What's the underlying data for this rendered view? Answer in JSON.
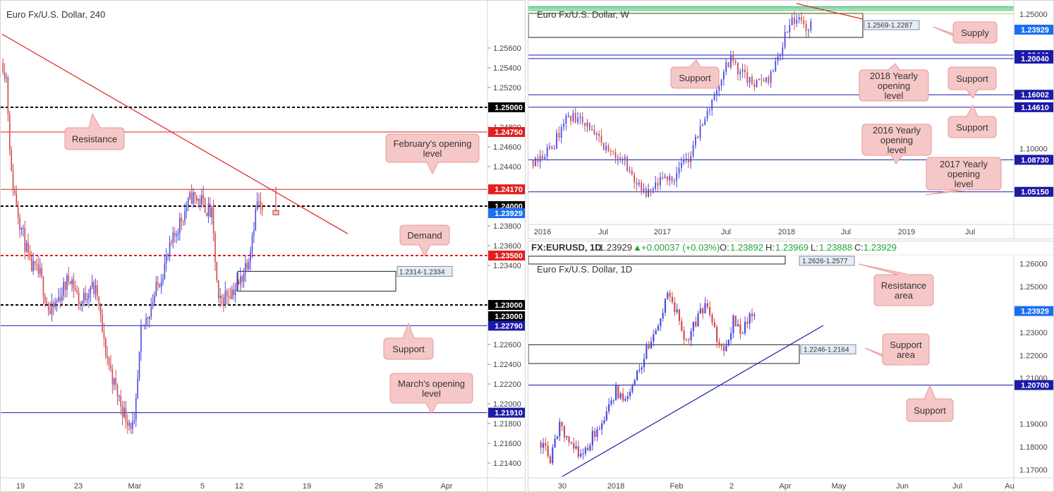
{
  "colors": {
    "bull": "#4a4ae0",
    "bear": "#d24a4a",
    "resistance": "#e02020",
    "support": "#1a1aa8",
    "level_black": "#000000",
    "callout_fill": "#f6c7c7",
    "callout_stroke": "#e79a9a",
    "zone_fill": "#e7edf4",
    "price_tag": "#1a6ef0",
    "green_line": "#3bbd6b"
  },
  "chart_data": [
    {
      "id": "h4",
      "type": "candlestick",
      "title": "Euro Fx/U.S. Dollar, 240",
      "ylim": [
        1.2125,
        1.2605
      ],
      "yticks": [
        "1.25600",
        "1.25400",
        "1.25200",
        "1.24800",
        "1.24600",
        "1.24400",
        "1.23800",
        "1.23600",
        "1.23400",
        "1.22600",
        "1.22400",
        "1.22200",
        "1.22000",
        "1.21800",
        "1.21600",
        "1.21400"
      ],
      "xticks": [
        "19",
        "23",
        "Mar",
        "5",
        "12",
        "19",
        "26",
        "Apr"
      ],
      "levels": [
        {
          "price": "1.25000",
          "style": "dotted-black",
          "tag": "1.25000"
        },
        {
          "price": "1.24750",
          "style": "red",
          "tag": "1.24750"
        },
        {
          "price": "1.24170",
          "style": "red",
          "tag": "1.24170"
        },
        {
          "price": "1.24000",
          "style": "dotted-black",
          "tag": "1.24000"
        },
        {
          "price": "1.23929",
          "style": "none",
          "tag": "1.23929",
          "current": true
        },
        {
          "price": "1.23500",
          "style": "dotted-red",
          "tag": "1.23500"
        },
        {
          "price": "1.23000",
          "style": "dotted-black",
          "tag": "1.23000"
        },
        {
          "price": "1.23000",
          "style": "none",
          "tag": "1.23000"
        },
        {
          "price": "1.22790",
          "style": "blue",
          "tag": "1.22790"
        },
        {
          "price": "1.21910",
          "style": "blue",
          "tag": "1.21910"
        }
      ],
      "zones": [
        {
          "label": "1.2314-1.2334",
          "low": 1.2314,
          "high": 1.2334
        }
      ],
      "trendlines": [
        {
          "color": "red",
          "from": "mid-Feb high",
          "to": "mid-Mar"
        }
      ],
      "annotations": [
        {
          "text": "Resistance"
        },
        {
          "text": "February's opening level"
        },
        {
          "text": "Demand"
        },
        {
          "text": "Support"
        },
        {
          "text": "March's opening level"
        }
      ]
    },
    {
      "id": "weekly",
      "type": "candlestick",
      "title": "Euro Fx/U.S. Dollar, W",
      "ylim": [
        1.015,
        1.262
      ],
      "yticks": [
        "1.25000",
        "1.10000"
      ],
      "xticks": [
        "2016",
        "Jul",
        "2017",
        "Jul",
        "2018",
        "Jul",
        "2019",
        "Jul"
      ],
      "levels": [
        {
          "price": "1.23929",
          "tag": "1.23929",
          "current": true
        },
        {
          "price": "1.20440",
          "tag": "1.20440"
        },
        {
          "price": "1.20040",
          "tag": "1.20040"
        },
        {
          "price": "1.16002",
          "tag": "1.16002"
        },
        {
          "price": "1.14610",
          "tag": "1.14610"
        },
        {
          "price": "1.08730",
          "tag": "1.08730"
        },
        {
          "price": "1.05150",
          "tag": "1.05150"
        }
      ],
      "zones": [
        {
          "label": "1.2569-1.2287",
          "low": 1.2287,
          "high": 1.2569
        }
      ],
      "annotations": [
        {
          "text": "Supply"
        },
        {
          "text": "Support"
        },
        {
          "text": "2018 Yearly opening level"
        },
        {
          "text": "Support"
        },
        {
          "text": "Support"
        },
        {
          "text": "2016 Yearly opening level"
        },
        {
          "text": "2017 Yearly opening level"
        }
      ]
    },
    {
      "id": "daily",
      "type": "candlestick",
      "title": "Euro Fx/U.S. Dollar, 1D",
      "symbol_line": {
        "symbol": "FX:EURUSD, 1D",
        "last": "1.23929",
        "change": "+0.00037 (+0.03%)",
        "O": "1.23892",
        "H": "1.23969",
        "L": "1.23888",
        "C": "1.23929"
      },
      "ylim": [
        1.1665,
        1.2635
      ],
      "yticks": [
        "1.26000",
        "1.25000",
        "1.23000",
        "1.22000",
        "1.21000",
        "1.19000",
        "1.18000",
        "1.17000"
      ],
      "xticks": [
        "30",
        "2018",
        "Feb",
        "2",
        "Apr",
        "May",
        "Jun",
        "Jul",
        "Au"
      ],
      "levels": [
        {
          "price": "1.23929",
          "tag": "1.23929",
          "current": true
        },
        {
          "price": "1.20700",
          "tag": "1.20700"
        }
      ],
      "zones": [
        {
          "label": "1.2626-1.2577",
          "low": 1.2577,
          "high": 1.2626
        },
        {
          "label": "1.2246-1.2164",
          "low": 1.2164,
          "high": 1.2246
        }
      ],
      "annotations": [
        {
          "text": "Resistance area"
        },
        {
          "text": "Support area"
        },
        {
          "text": "Support"
        }
      ]
    }
  ]
}
